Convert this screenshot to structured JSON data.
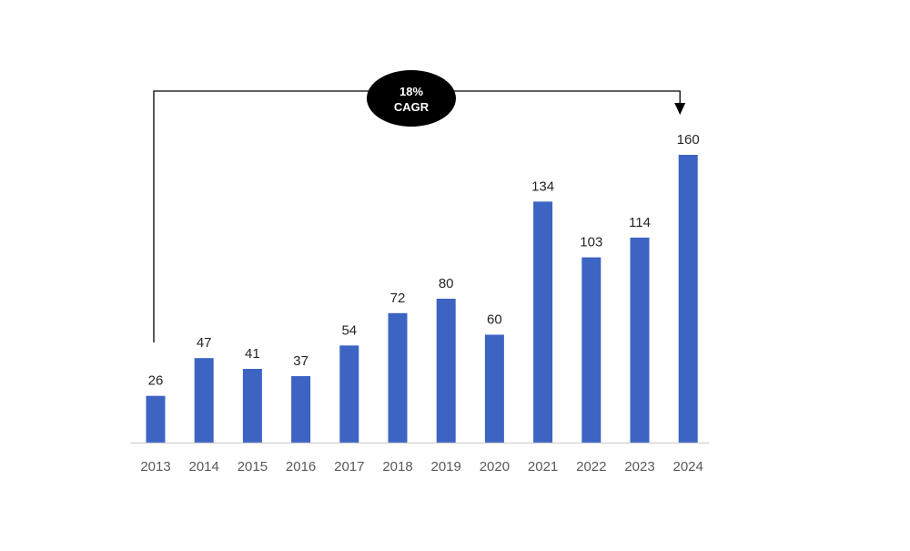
{
  "chart_data": {
    "type": "bar",
    "categories": [
      "2013",
      "2014",
      "2015",
      "2016",
      "2017",
      "2018",
      "2019",
      "2020",
      "2021",
      "2022",
      "2023",
      "2024"
    ],
    "values": [
      26,
      47,
      41,
      37,
      54,
      72,
      80,
      60,
      134,
      103,
      114,
      160
    ],
    "data_labels": [
      "26",
      "47",
      "41",
      "37",
      "54",
      "72",
      "80",
      "60",
      "134",
      "103",
      "114",
      "160"
    ],
    "title": "",
    "xlabel": "",
    "ylabel": "",
    "ylim": [
      0,
      160
    ],
    "grid": false,
    "legend": "none",
    "bar_color": "#3D64C3",
    "annotation": {
      "line1": "18%",
      "line2": "CAGR",
      "from": "2013",
      "to": "2024",
      "color": "#000000"
    }
  }
}
